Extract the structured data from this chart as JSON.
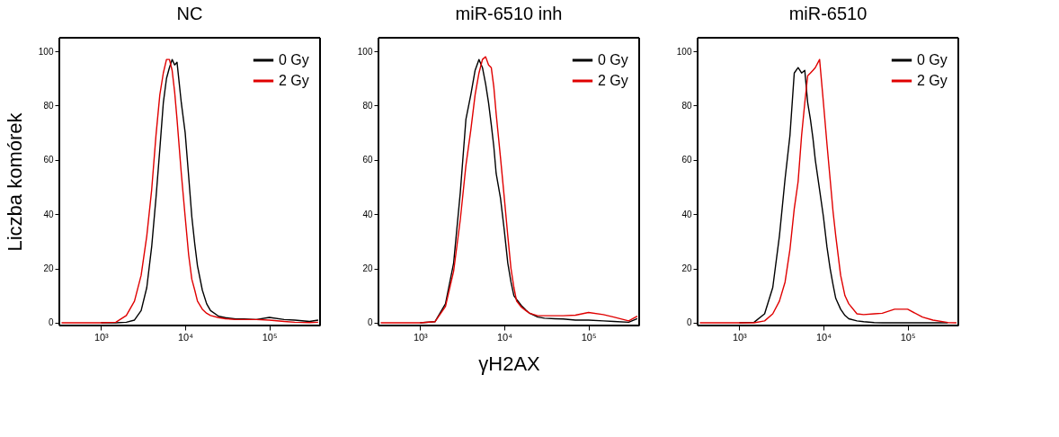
{
  "chart_data": [
    {
      "type": "line",
      "title": "NC",
      "ylabel": "Liczba komórek",
      "xlim": [
        320,
        400000
      ],
      "ylim": [
        -1,
        105
      ],
      "xticks": [
        {
          "value": 1000,
          "label": "10³"
        },
        {
          "value": 10000,
          "label": "10⁴"
        },
        {
          "value": 100000,
          "label": "10⁵"
        }
      ],
      "yticks": [
        0,
        20,
        40,
        60,
        80,
        100
      ],
      "log": "x",
      "grid": false,
      "legend": "top right",
      "marker": "none",
      "line_style": "solid",
      "x": [
        340,
        1000,
        1500,
        2000,
        2500,
        3000,
        3500,
        4000,
        4500,
        5000,
        5500,
        6000,
        6500,
        7000,
        7500,
        8000,
        9000,
        10000,
        11000,
        12000,
        13000,
        14000,
        16000,
        18000,
        20000,
        25000,
        30000,
        40000,
        50000,
        70000,
        100000,
        150000,
        200000,
        300000,
        380000
      ],
      "series": [
        {
          "name": "0 Gy",
          "color": "#000000",
          "values": [
            null,
            0,
            0,
            0.2,
            1,
            4.5,
            13,
            28,
            46,
            64,
            81,
            90,
            94,
            97,
            95,
            96,
            81,
            70,
            54,
            39,
            29,
            21,
            12,
            7,
            4.5,
            2.4,
            1.9,
            1.4,
            1.4,
            1.2,
            2,
            1.2,
            1,
            0.5,
            1
          ]
        },
        {
          "name": "2 Gy",
          "color": "#e00000",
          "values": [
            0,
            0,
            0.2,
            2.7,
            8,
            17.5,
            32,
            49,
            69,
            84,
            92,
            97,
            97,
            93,
            85,
            75,
            55,
            39,
            25,
            16,
            12,
            8,
            5,
            3.5,
            2.7,
            1.9,
            1.5,
            1.2,
            1.2,
            1.2,
            1,
            0.5,
            0.2,
            0.1,
            0.2
          ]
        }
      ]
    },
    {
      "type": "line",
      "title": "miR-6510 inh",
      "xlabel": "γH2AX",
      "xlim": [
        320,
        400000
      ],
      "ylim": [
        -1,
        105
      ],
      "xticks": [
        {
          "value": 1000,
          "label": "10³"
        },
        {
          "value": 10000,
          "label": "10⁴"
        },
        {
          "value": 100000,
          "label": "10⁵"
        }
      ],
      "yticks": [
        0,
        20,
        40,
        60,
        80,
        100
      ],
      "log": "x",
      "grid": false,
      "legend": "top right",
      "marker": "none",
      "line_style": "solid",
      "x": [
        340,
        1000,
        1500,
        2000,
        2500,
        3000,
        3500,
        4000,
        4500,
        5000,
        5500,
        6000,
        6500,
        7000,
        7500,
        8000,
        9000,
        10000,
        11000,
        12000,
        13000,
        14000,
        16000,
        18000,
        20000,
        25000,
        30000,
        40000,
        50000,
        70000,
        100000,
        150000,
        200000,
        300000,
        380000
      ],
      "series": [
        {
          "name": "0 Gy",
          "color": "#000000",
          "values": [
            null,
            0,
            0.4,
            7,
            22,
            48,
            75,
            84,
            93,
            97,
            94,
            88,
            81,
            73,
            65,
            55,
            46,
            34,
            22,
            15,
            10,
            8.6,
            6.3,
            4.7,
            3.5,
            2.1,
            1.7,
            1.5,
            1.4,
            1,
            1,
            0.7,
            0.5,
            0.2,
            1.5
          ]
        },
        {
          "name": "2 Gy",
          "color": "#e00000",
          "values": [
            0,
            0,
            0.4,
            6,
            19,
            38,
            58,
            71,
            84,
            92,
            97,
            98,
            95,
            94,
            87,
            77,
            61,
            46,
            32,
            20,
            13,
            8,
            5.7,
            4.5,
            3.5,
            2.6,
            2.6,
            2.6,
            2.6,
            2.8,
            3.8,
            3,
            2.1,
            0.7,
            2.4
          ]
        }
      ]
    },
    {
      "type": "line",
      "title": "miR-6510",
      "xlim": [
        320,
        400000
      ],
      "ylim": [
        -1,
        105
      ],
      "xticks": [
        {
          "value": 1000,
          "label": "10³"
        },
        {
          "value": 10000,
          "label": "10⁴"
        },
        {
          "value": 100000,
          "label": "10⁵"
        }
      ],
      "yticks": [
        0,
        20,
        40,
        60,
        80,
        100
      ],
      "log": "x",
      "grid": false,
      "legend": "top right",
      "marker": "none",
      "line_style": "solid",
      "x": [
        340,
        1000,
        1500,
        2000,
        2500,
        3000,
        3500,
        4000,
        4500,
        5000,
        5500,
        6000,
        6500,
        7000,
        7500,
        8000,
        9000,
        10000,
        11000,
        12000,
        13000,
        14000,
        16000,
        18000,
        20000,
        25000,
        30000,
        40000,
        50000,
        70000,
        100000,
        150000,
        200000,
        300000,
        380000
      ],
      "series": [
        {
          "name": "0 Gy",
          "color": "#000000",
          "values": [
            null,
            0,
            0.2,
            3.3,
            13,
            32,
            53,
            69,
            92,
            94,
            92,
            93,
            81,
            75,
            68,
            60,
            49,
            39,
            28,
            20,
            14,
            9,
            5,
            2.7,
            1.5,
            0.7,
            0.4,
            0.1,
            0,
            0,
            0,
            0,
            0,
            0,
            null
          ]
        },
        {
          "name": "2 Gy",
          "color": "#e00000",
          "values": [
            0,
            0,
            0,
            0.7,
            3.3,
            8,
            15,
            27,
            42,
            52,
            69,
            81,
            91,
            92,
            93,
            94,
            97,
            81,
            66,
            53,
            41,
            32,
            17.5,
            10,
            7,
            3.3,
            3,
            3.3,
            3.5,
            5,
            5,
            2.1,
            1,
            0.1,
            0
          ]
        }
      ]
    }
  ]
}
